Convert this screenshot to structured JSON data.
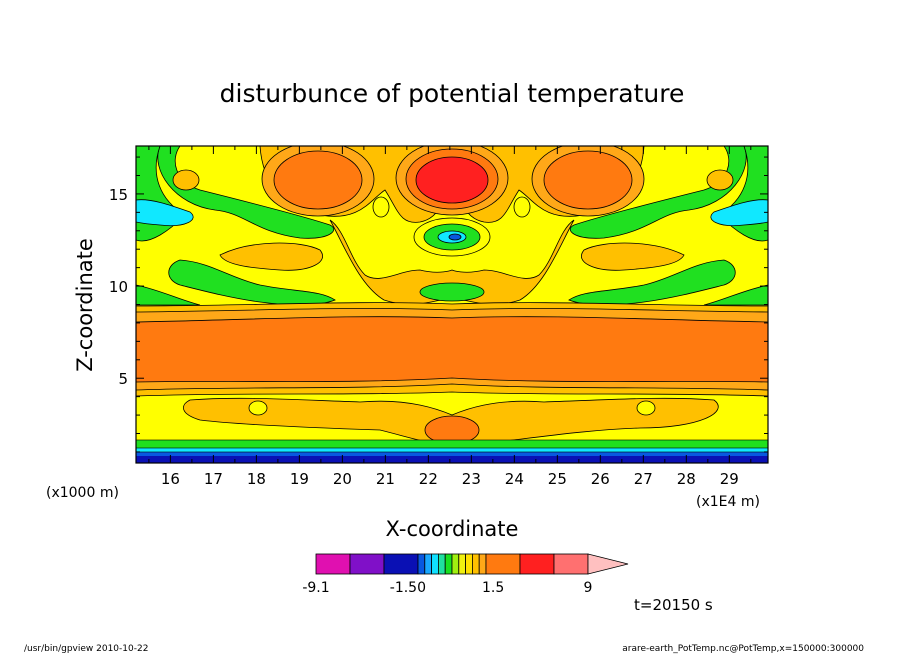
{
  "chart_data": {
    "type": "heatmap",
    "title": "disturbunce of potential temperature",
    "xlabel": "X-coordinate",
    "ylabel": "Z-coordinate",
    "x_unit_left": "(x1000 m)",
    "x_unit_right": "(x1E4 m)",
    "xlim": [
      15.2,
      29.9
    ],
    "ylim": [
      0.4,
      17.6
    ],
    "x_ticks": [
      {
        "value": 16,
        "label": "16"
      },
      {
        "value": 17,
        "label": "17"
      },
      {
        "value": 18,
        "label": "18"
      },
      {
        "value": 19,
        "label": "19"
      },
      {
        "value": 20,
        "label": "20"
      },
      {
        "value": 21,
        "label": "21"
      },
      {
        "value": 22,
        "label": "22"
      },
      {
        "value": 23,
        "label": "23"
      },
      {
        "value": 24,
        "label": "24"
      },
      {
        "value": 25,
        "label": "25"
      },
      {
        "value": 26,
        "label": "26"
      },
      {
        "value": 27,
        "label": "27"
      },
      {
        "value": 28,
        "label": "28"
      },
      {
        "value": 29,
        "label": "29"
      }
    ],
    "y_ticks": [
      {
        "value": 5,
        "label": "5"
      },
      {
        "value": 10,
        "label": "10"
      },
      {
        "value": 15,
        "label": "15"
      }
    ],
    "colorbar": {
      "levels": [
        -9.1,
        -6,
        -3,
        -1.5,
        -1.2,
        -0.9,
        -0.6,
        -0.3,
        0,
        0.3,
        0.6,
        0.9,
        1.2,
        1.5,
        3,
        6,
        9
      ],
      "colors": [
        "#e010b0",
        "#8010c8",
        "#0a10b4",
        "#0858e0",
        "#18a8ff",
        "#10e0ff",
        "#20e0a0",
        "#18e020",
        "#a0f010",
        "#f0f010",
        "#ffe000",
        "#ffc000",
        "#ffa818",
        "#ff7a10",
        "#ff2020",
        "#ff7070",
        "#ffc0c0"
      ],
      "tick_labels": [
        {
          "value": -9.1,
          "label": "-9.1"
        },
        {
          "value": -1.5,
          "label": "-1.50"
        },
        {
          "value": 1.5,
          "label": "1.5"
        },
        {
          "value": 9,
          "label": "9"
        }
      ]
    },
    "annotation": "t=20150 s",
    "regions": [
      {
        "desc": "lower strong band",
        "x": [
          15.2,
          29.9
        ],
        "z": [
          4.3,
          8.7
        ],
        "value": 4.5
      },
      {
        "desc": "surface layer",
        "x": [
          15.2,
          29.9
        ],
        "z": [
          0.4,
          1.0
        ],
        "value": -3
      },
      {
        "desc": "upper blob left",
        "x": 19.8,
        "z": 15.9,
        "value": 4.5
      },
      {
        "desc": "upper blob center",
        "x": 22.6,
        "z": 15.9,
        "value": 7.5
      },
      {
        "desc": "upper blob right",
        "x": 25.4,
        "z": 15.9,
        "value": 4.5
      },
      {
        "desc": "upper cool spot",
        "x": 22.6,
        "z": 12.7,
        "value": -1.2
      },
      {
        "desc": "upper cool patches left",
        "x": 15.8,
        "z": 14.5,
        "value": -0.6
      },
      {
        "desc": "upper cool patches right",
        "x": 29.2,
        "z": 14.5,
        "value": -0.6
      }
    ]
  },
  "footer": {
    "left": "/usr/bin/gpview   2010-10-22",
    "right": "arare-earth_PotTemp.nc@PotTemp,x=150000:300000"
  }
}
